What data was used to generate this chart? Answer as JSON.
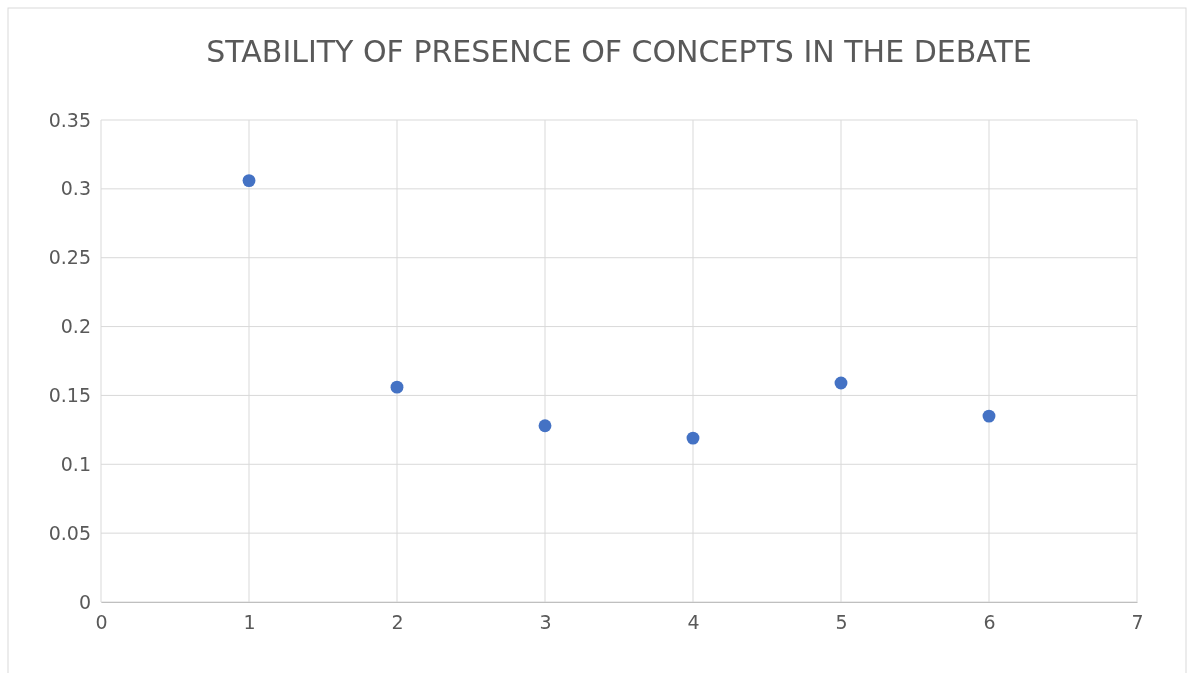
{
  "chart_data": {
    "type": "scatter",
    "title": "STABILITY OF PRESENCE OF CONCEPTS IN THE DEBATE",
    "x": [
      1,
      2,
      3,
      4,
      5,
      6
    ],
    "series": [
      {
        "color": "#4472c4",
        "values": [
          0.306,
          0.156,
          0.128,
          0.119,
          0.159,
          0.135
        ]
      }
    ],
    "xlim": [
      0,
      7
    ],
    "xticks": [
      0,
      1,
      2,
      3,
      4,
      5,
      6,
      7
    ],
    "ylim": [
      0,
      0.35
    ],
    "yticks": [
      0,
      0.05,
      0.1,
      0.15,
      0.2,
      0.25,
      0.3,
      0.35
    ],
    "grid": true,
    "marker": "circle"
  }
}
